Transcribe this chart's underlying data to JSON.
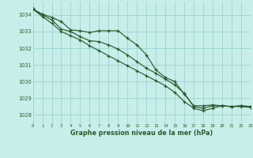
{
  "title": "Graphe pression niveau de la mer (hPa)",
  "bg_color": "#c8eeea",
  "grid_color": "#a0d8d4",
  "line_color": "#2d5a2d",
  "xlim": [
    0,
    23
  ],
  "ylim": [
    1027.5,
    1034.8
  ],
  "yticks": [
    1028,
    1029,
    1030,
    1031,
    1032,
    1033,
    1034
  ],
  "xticks": [
    0,
    1,
    2,
    3,
    4,
    5,
    6,
    7,
    8,
    9,
    10,
    11,
    12,
    13,
    14,
    15,
    16,
    17,
    18,
    19,
    20,
    21,
    22,
    23
  ],
  "series1": [
    1034.35,
    1034.05,
    1033.85,
    1033.6,
    1033.1,
    1033.05,
    1032.95,
    1033.05,
    1033.05,
    1033.05,
    1032.6,
    1032.2,
    1031.6,
    1030.7,
    1030.25,
    1030.0,
    1029.25,
    1028.55,
    1028.55,
    1028.6,
    1028.55,
    1028.5,
    1028.55,
    1028.5
  ],
  "series2": [
    1034.35,
    1034.0,
    1033.7,
    1033.15,
    1033.0,
    1032.7,
    1032.45,
    1032.4,
    1032.2,
    1031.95,
    1031.6,
    1031.2,
    1030.8,
    1030.5,
    1030.15,
    1029.8,
    1029.3,
    1028.5,
    1028.4,
    1028.55,
    1028.55,
    1028.5,
    1028.55,
    1028.5
  ],
  "series3": [
    1034.35,
    1033.9,
    1033.5,
    1033.0,
    1032.75,
    1032.5,
    1032.15,
    1031.85,
    1031.55,
    1031.25,
    1030.95,
    1030.65,
    1030.35,
    1030.05,
    1029.75,
    1029.35,
    1028.8,
    1028.4,
    1028.25,
    1028.4,
    1028.55,
    1028.5,
    1028.5,
    1028.45
  ]
}
